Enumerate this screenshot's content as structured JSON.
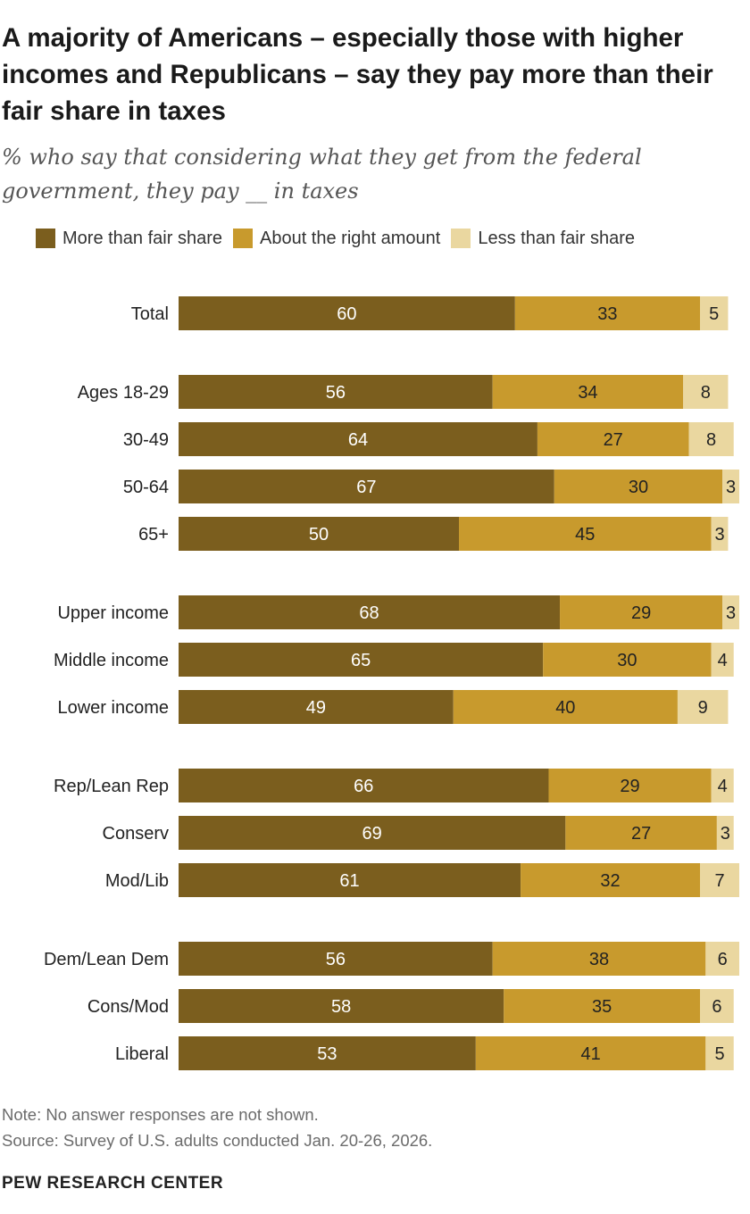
{
  "colors": {
    "more": "#7b5e1e",
    "right": "#c89a2d",
    "less": "#ead7a0"
  },
  "chart_data": {
    "type": "bar",
    "orientation": "horizontal",
    "stacked": true,
    "title": "A majority of Americans – especially those with higher incomes and Republicans – say they pay more than their fair share in taxes",
    "subtitle": "% who say that considering what they get from the federal government, they pay __ in taxes",
    "xlim": [
      0,
      100
    ],
    "legend": [
      {
        "name": "More than fair share",
        "color_key": "more"
      },
      {
        "name": "About the right amount",
        "color_key": "right"
      },
      {
        "name": "Less than fair share",
        "color_key": "less"
      }
    ],
    "groups": [
      {
        "rows": [
          {
            "label": "Total",
            "values": [
              60,
              33,
              5
            ]
          }
        ]
      },
      {
        "rows": [
          {
            "label": "Ages 18-29",
            "values": [
              56,
              34,
              8
            ]
          },
          {
            "label": "30-49",
            "values": [
              64,
              27,
              8
            ]
          },
          {
            "label": "50-64",
            "values": [
              67,
              30,
              3
            ]
          },
          {
            "label": "65+",
            "values": [
              50,
              45,
              3
            ]
          }
        ]
      },
      {
        "rows": [
          {
            "label": "Upper income",
            "values": [
              68,
              29,
              3
            ]
          },
          {
            "label": "Middle income",
            "values": [
              65,
              30,
              4
            ]
          },
          {
            "label": "Lower income",
            "values": [
              49,
              40,
              9
            ]
          }
        ]
      },
      {
        "rows": [
          {
            "label": "Rep/Lean Rep",
            "values": [
              66,
              29,
              4
            ]
          },
          {
            "label": "Conserv",
            "values": [
              69,
              27,
              3
            ]
          },
          {
            "label": "Mod/Lib",
            "values": [
              61,
              32,
              7
            ]
          }
        ]
      },
      {
        "rows": [
          {
            "label": "Dem/Lean Dem",
            "values": [
              56,
              38,
              6
            ]
          },
          {
            "label": "Cons/Mod",
            "values": [
              58,
              35,
              6
            ]
          },
          {
            "label": "Liberal",
            "values": [
              53,
              41,
              5
            ]
          }
        ]
      }
    ]
  },
  "footer": {
    "note": "Note: No answer responses are not shown.",
    "source": "Source: Survey of U.S. adults conducted Jan. 20-26, 2026.",
    "brand": "PEW RESEARCH CENTER"
  }
}
